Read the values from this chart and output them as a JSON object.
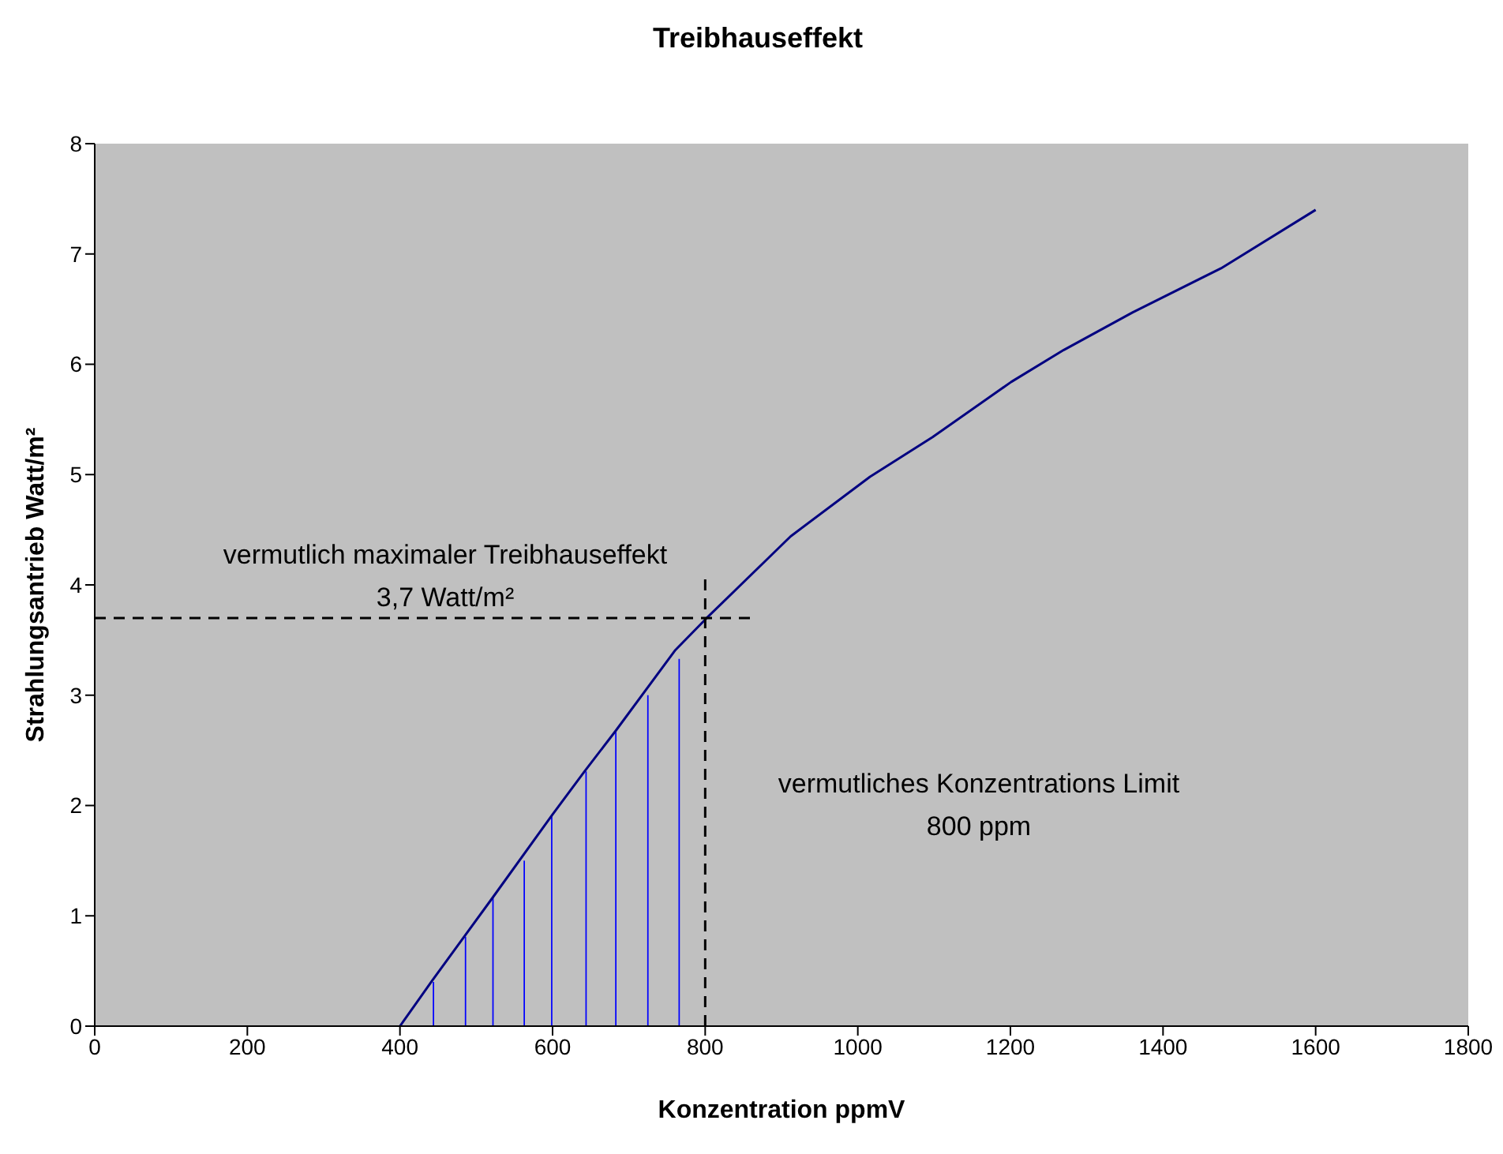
{
  "chart_data": {
    "type": "line",
    "title": "Treibhauseffekt",
    "xlabel": "Konzentration ppmV",
    "ylabel": "Strahlungsantrieb Watt/m²",
    "xlim": [
      0,
      1800
    ],
    "xticks": [
      0,
      200,
      400,
      600,
      800,
      1000,
      1200,
      1400,
      1600,
      1800
    ],
    "ylim": [
      0,
      8
    ],
    "yticks": [
      0,
      1,
      2,
      3,
      4,
      5,
      6,
      7,
      8
    ],
    "grid": false,
    "marker": "none",
    "series": [
      {
        "color": "#000080",
        "line_style": "solid",
        "x": [
          400,
          442,
          484,
          522,
          599,
          642,
          683,
          761,
          802,
          912,
          1016,
          1098,
          1201,
          1270,
          1360,
          1476,
          1600
        ],
        "values": [
          0,
          0.41,
          0.81,
          1.17,
          1.91,
          2.31,
          2.68,
          3.41,
          3.7,
          4.44,
          4.98,
          5.34,
          5.84,
          6.13,
          6.47,
          6.87,
          7.4
        ]
      },
      {
        "type": "bar",
        "color": "#0000ff",
        "x": [
          444,
          486,
          522,
          563,
          599,
          644,
          683,
          725,
          766
        ],
        "values": [
          0.4,
          0.81,
          1.17,
          1.5,
          1.91,
          2.31,
          2.67,
          3.0,
          3.33
        ]
      },
      {
        "color": "#000000",
        "line_style": "dashed",
        "x": [
          0,
          860
        ],
        "values": [
          3.7,
          3.7
        ]
      },
      {
        "color": "#000000",
        "line_style": "dashed",
        "x": [
          800,
          800
        ],
        "values": [
          0,
          4.1
        ]
      }
    ],
    "annotations": [
      "vermutlich maximaler Treibhauseffekt\n3,7 Watt/m²",
      "vermutliches Konzentrations Limit\n800 ppm"
    ]
  }
}
